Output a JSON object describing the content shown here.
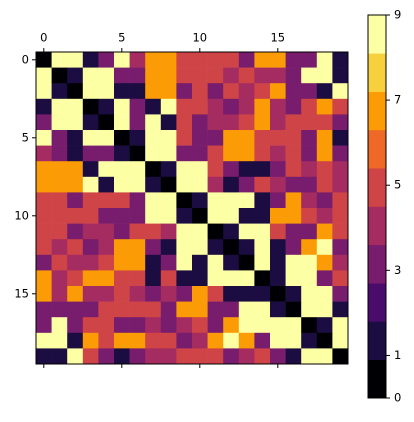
{
  "chart_data": {
    "type": "heatmap",
    "z": [
      [
        0,
        9,
        9,
        1,
        3,
        9,
        4,
        7,
        7,
        5,
        5,
        5,
        5,
        3,
        7,
        7,
        3,
        3,
        9,
        1
      ],
      [
        9,
        0,
        1,
        9,
        9,
        3,
        3,
        7,
        7,
        5,
        5,
        5,
        4,
        5,
        4,
        4,
        3,
        9,
        9,
        1
      ],
      [
        9,
        1,
        0,
        9,
        9,
        1,
        1,
        7,
        7,
        3,
        5,
        3,
        5,
        4,
        5,
        7,
        3,
        3,
        1,
        9
      ],
      [
        1,
        9,
        9,
        0,
        1,
        9,
        3,
        1,
        9,
        5,
        5,
        4,
        3,
        4,
        7,
        4,
        3,
        5,
        7,
        5
      ],
      [
        3,
        9,
        9,
        1,
        0,
        9,
        3,
        9,
        1,
        5,
        3,
        4,
        4,
        5,
        7,
        4,
        5,
        5,
        5,
        3
      ],
      [
        9,
        3,
        1,
        9,
        9,
        0,
        1,
        9,
        9,
        5,
        3,
        3,
        7,
        7,
        5,
        5,
        5,
        3,
        7,
        1
      ],
      [
        4,
        3,
        1,
        3,
        3,
        1,
        0,
        9,
        9,
        3,
        3,
        5,
        7,
        7,
        5,
        4,
        5,
        3,
        7,
        3
      ],
      [
        7,
        7,
        7,
        1,
        9,
        9,
        9,
        0,
        1,
        9,
        9,
        5,
        3,
        1,
        1,
        3,
        5,
        4,
        5,
        4
      ],
      [
        7,
        7,
        7,
        9,
        1,
        9,
        9,
        1,
        0,
        9,
        9,
        4,
        1,
        3,
        5,
        4,
        3,
        3,
        5,
        4
      ],
      [
        5,
        5,
        3,
        5,
        5,
        5,
        3,
        9,
        9,
        0,
        1,
        9,
        9,
        9,
        1,
        3,
        7,
        4,
        3,
        5
      ],
      [
        5,
        5,
        5,
        5,
        3,
        3,
        3,
        9,
        9,
        1,
        0,
        9,
        9,
        1,
        1,
        7,
        7,
        5,
        4,
        5
      ],
      [
        5,
        5,
        3,
        4,
        4,
        3,
        5,
        5,
        4,
        9,
        9,
        0,
        1,
        9,
        9,
        5,
        3,
        3,
        7,
        5
      ],
      [
        5,
        4,
        5,
        3,
        4,
        7,
        7,
        3,
        1,
        9,
        9,
        1,
        0,
        1,
        9,
        1,
        3,
        7,
        9,
        3
      ],
      [
        3,
        5,
        4,
        4,
        5,
        7,
        7,
        1,
        3,
        9,
        1,
        9,
        1,
        0,
        9,
        1,
        9,
        9,
        7,
        4
      ],
      [
        7,
        4,
        5,
        7,
        7,
        5,
        5,
        1,
        5,
        1,
        1,
        9,
        9,
        9,
        0,
        1,
        9,
        9,
        3,
        5
      ],
      [
        7,
        4,
        7,
        4,
        4,
        5,
        4,
        3,
        4,
        3,
        7,
        5,
        1,
        1,
        1,
        0,
        1,
        9,
        9,
        3
      ],
      [
        3,
        3,
        3,
        3,
        5,
        5,
        5,
        5,
        3,
        7,
        7,
        3,
        3,
        9,
        9,
        1,
        0,
        9,
        9,
        1
      ],
      [
        3,
        9,
        3,
        5,
        5,
        3,
        3,
        4,
        3,
        4,
        5,
        3,
        7,
        9,
        9,
        9,
        9,
        0,
        1,
        9
      ],
      [
        9,
        9,
        1,
        7,
        5,
        7,
        7,
        5,
        5,
        3,
        4,
        7,
        9,
        7,
        3,
        9,
        9,
        1,
        0,
        9
      ],
      [
        1,
        1,
        9,
        5,
        3,
        1,
        3,
        4,
        4,
        5,
        5,
        5,
        3,
        4,
        5,
        3,
        1,
        9,
        9,
        0
      ]
    ],
    "colors": [
      "#000004",
      "#1b0c41",
      "#4a0c6b",
      "#781c6d",
      "#a52c60",
      "#cf4446",
      "#ed6925",
      "#fb9b06",
      "#f7d13d",
      "#fcffa4"
    ],
    "clim": [
      0,
      9
    ],
    "cticks": [
      0,
      1,
      3,
      5,
      7,
      9
    ],
    "xlim": [
      -0.5,
      19.5
    ],
    "ylim": [
      19.5,
      -0.5
    ],
    "xticks": [
      0,
      5,
      10,
      15
    ],
    "yticks": [
      0,
      5,
      10,
      15
    ]
  }
}
